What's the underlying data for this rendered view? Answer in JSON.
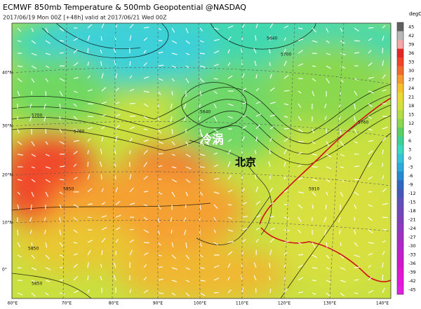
{
  "header": {
    "title": "ECMWF 850mb Temperature & 500mb Geopotential @NASDAQ",
    "subtitle": "2017/06/19 Mon 00Z [+48h] valid at 2017/06/21 Wed 00Z"
  },
  "map": {
    "annotations": [
      "冷涡",
      "北京"
    ],
    "lat_labels": [
      "40°N",
      "30°N",
      "20°N",
      "10°N",
      "0°"
    ],
    "lon_labels": [
      "60°E",
      "70°E",
      "80°E",
      "90°E",
      "100°E",
      "110°E",
      "120°E",
      "130°E",
      "140°E"
    ],
    "contour_labels": [
      "5700",
      "5760",
      "5850",
      "5850",
      "5850",
      "5910",
      "5700",
      "5640",
      "5640",
      "5760"
    ]
  },
  "colorbar": {
    "unit": "degC",
    "ticks": [
      45,
      42,
      39,
      36,
      33,
      30,
      27,
      24,
      21,
      18,
      15,
      12,
      9,
      6,
      3,
      0,
      -3,
      -6,
      -9,
      -12,
      -15,
      -18,
      -21,
      -24,
      -27,
      -30,
      -33,
      -36,
      -39,
      -42,
      -45
    ]
  }
}
